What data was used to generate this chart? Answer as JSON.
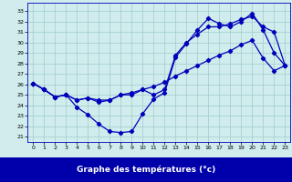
{
  "title": "Graphe des températures (°c)",
  "bg_color": "#d0ecec",
  "grid_color": "#a0cccc",
  "line_color": "#0000bb",
  "x_ticks": [
    0,
    1,
    2,
    3,
    4,
    5,
    6,
    7,
    8,
    9,
    10,
    11,
    12,
    13,
    14,
    15,
    16,
    17,
    18,
    19,
    20,
    21,
    22,
    23
  ],
  "y_ticks": [
    21,
    22,
    23,
    24,
    25,
    26,
    27,
    28,
    29,
    30,
    31,
    32,
    33
  ],
  "ylim": [
    20.5,
    33.8
  ],
  "xlim": [
    -0.5,
    23.5
  ],
  "curve1_y": [
    26.1,
    25.5,
    24.8,
    25.0,
    23.8,
    23.1,
    22.2,
    21.5,
    21.4,
    21.5,
    23.2,
    24.6,
    25.2,
    28.6,
    29.9,
    31.2,
    32.3,
    31.8,
    31.5,
    32.0,
    32.8,
    31.2,
    29.0,
    27.8
  ],
  "curve2_y": [
    26.1,
    25.5,
    24.8,
    25.0,
    24.5,
    24.7,
    24.3,
    24.5,
    25.0,
    25.0,
    25.5,
    25.0,
    25.5,
    28.8,
    30.0,
    30.8,
    31.5,
    31.5,
    31.8,
    32.2,
    32.5,
    31.5,
    31.0,
    27.8
  ],
  "curve3_y": [
    26.1,
    25.5,
    24.8,
    25.0,
    24.5,
    24.7,
    24.5,
    24.5,
    25.0,
    25.2,
    25.5,
    25.8,
    26.2,
    26.8,
    27.3,
    27.8,
    28.3,
    28.8,
    29.2,
    29.8,
    30.2,
    28.5,
    27.3,
    27.8
  ],
  "label_bg": "#0000aa",
  "label_fg": "#ffffff",
  "figsize": [
    3.2,
    2.0
  ],
  "dpi": 100
}
